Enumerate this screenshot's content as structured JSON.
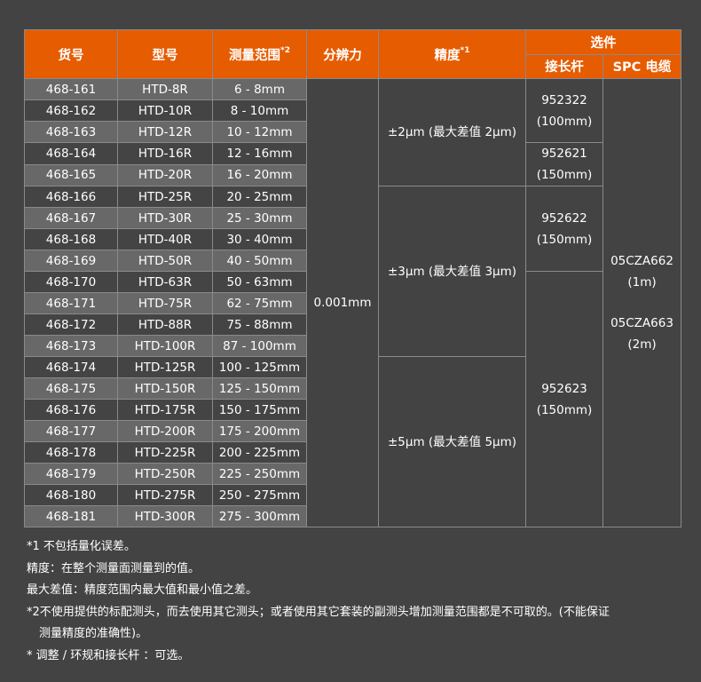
{
  "header": {
    "item_no": "货号",
    "model": "型号",
    "range": "测量范围",
    "range_note": "*2",
    "resolution": "分辨力",
    "accuracy": "精度",
    "accuracy_note": "*1",
    "options": "选件",
    "extension_rod": "接长杆",
    "spc_cable": "SPC 电缆"
  },
  "rows": [
    {
      "item": "468-161",
      "model": "HTD-8R",
      "range": "6 - 8mm"
    },
    {
      "item": "468-162",
      "model": "HTD-10R",
      "range": "8 - 10mm"
    },
    {
      "item": "468-163",
      "model": "HTD-12R",
      "range": "10 - 12mm"
    },
    {
      "item": "468-164",
      "model": "HTD-16R",
      "range": "12 - 16mm"
    },
    {
      "item": "468-165",
      "model": "HTD-20R",
      "range": "16 - 20mm"
    },
    {
      "item": "468-166",
      "model": "HTD-25R",
      "range": "20 - 25mm"
    },
    {
      "item": "468-167",
      "model": "HTD-30R",
      "range": "25 - 30mm"
    },
    {
      "item": "468-168",
      "model": "HTD-40R",
      "range": "30 - 40mm"
    },
    {
      "item": "468-169",
      "model": "HTD-50R",
      "range": "40 - 50mm"
    },
    {
      "item": "468-170",
      "model": "HTD-63R",
      "range": "50 - 63mm"
    },
    {
      "item": "468-171",
      "model": "HTD-75R",
      "range": "62 - 75mm"
    },
    {
      "item": "468-172",
      "model": "HTD-88R",
      "range": "75 - 88mm"
    },
    {
      "item": "468-173",
      "model": "HTD-100R",
      "range": "87 - 100mm"
    },
    {
      "item": "468-174",
      "model": "HTD-125R",
      "range": "100 - 125mm"
    },
    {
      "item": "468-175",
      "model": "HTD-150R",
      "range": "125 - 150mm"
    },
    {
      "item": "468-176",
      "model": "HTD-175R",
      "range": "150 - 175mm"
    },
    {
      "item": "468-177",
      "model": "HTD-200R",
      "range": "175 - 200mm"
    },
    {
      "item": "468-178",
      "model": "HTD-225R",
      "range": "200 - 225mm"
    },
    {
      "item": "468-179",
      "model": "HTD-250R",
      "range": "225 - 250mm"
    },
    {
      "item": "468-180",
      "model": "HTD-275R",
      "range": "250 - 275mm"
    },
    {
      "item": "468-181",
      "model": "HTD-300R",
      "range": "275 - 300mm"
    }
  ],
  "resolution": "0.001mm",
  "accuracy": [
    "±2µm (最大差值 2µm)",
    "±3µm (最大差值 3µm)",
    "±5µm (最大差值 5µm)"
  ],
  "extension_rods": [
    {
      "code": "952322",
      "length": "(100mm)"
    },
    {
      "code": "952621",
      "length": "(150mm)"
    },
    {
      "code": "952622",
      "length": "(150mm)"
    },
    {
      "code": "952623",
      "length": "(150mm)"
    }
  ],
  "spc_cables": [
    {
      "code": "05CZA662",
      "length": "(1m)"
    },
    {
      "code": "05CZA663",
      "length": "(2m)"
    }
  ],
  "notes": [
    "*1 不包括量化误差。",
    "精度：在整个测量面测量到的值。",
    "最大差值：精度范围内最大值和最小值之差。",
    "*2不使用提供的标配测头，而去使用其它测头；或者使用其它套装的副测头增加测量范围都是不可取的。(不能保证",
    "测量精度的准确性)。",
    "* 调整 / 环规和接长杆 ：可选。"
  ],
  "colors": {
    "header": "#e65c00",
    "background": "#434343",
    "row_alt": "#686868"
  }
}
